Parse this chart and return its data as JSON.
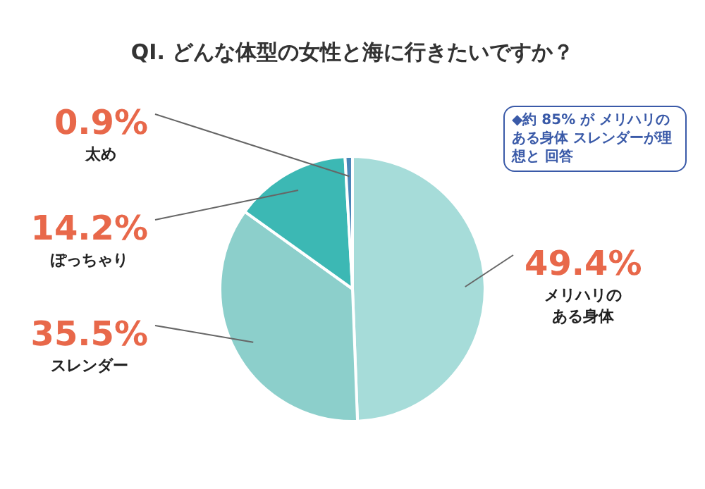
{
  "chart_data": {
    "type": "pie",
    "title": "QI. どんな体型の女性と海に行きたいですか？",
    "categories": [
      "メリハリのある身体",
      "スレンダー",
      "ぽっちゃり",
      "太め"
    ],
    "values": [
      49.4,
      35.5,
      14.2,
      0.9
    ],
    "colors": [
      "#a6dcd9",
      "#8ccfcb",
      "#3cb8b4",
      "#4a86b8"
    ],
    "value_labels": [
      "49.4%",
      "35.5%",
      "14.2%",
      "0.9%"
    ],
    "annotations": [
      "◆約 85% が メリハリのある身体 スレンダーが理想と 回答"
    ],
    "legend": false
  }
}
